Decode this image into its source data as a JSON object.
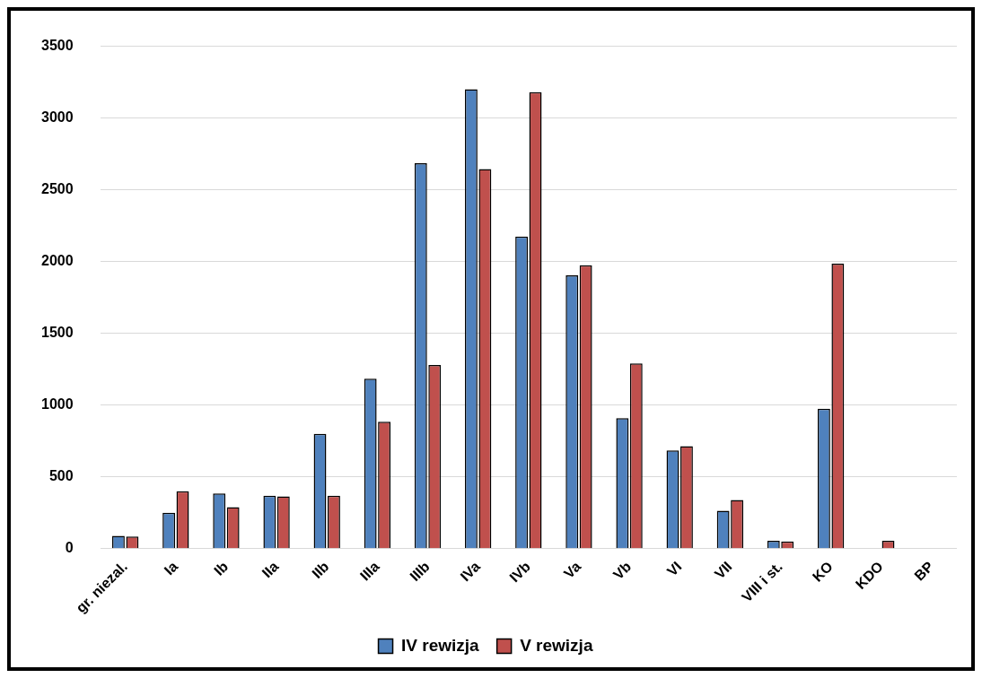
{
  "chart_data": {
    "type": "bar",
    "categories": [
      "gr. niezal.",
      "Ia",
      "Ib",
      "IIa",
      "IIb",
      "IIIa",
      "IIIb",
      "IVa",
      "IVb",
      "Va",
      "Vb",
      "VI",
      "VII",
      "VIII i st.",
      "KO",
      "KDO",
      "BP"
    ],
    "series": [
      {
        "name": "IV rewizja",
        "color": "#4f81bd",
        "values": [
          90,
          250,
          385,
          370,
          800,
          1185,
          2685,
          3200,
          2175,
          1905,
          910,
          685,
          265,
          55,
          975,
          null,
          0
        ]
      },
      {
        "name": "V rewizja",
        "color": "#c0504d",
        "values": [
          85,
          400,
          290,
          365,
          370,
          885,
          1280,
          2645,
          3180,
          1975,
          1290,
          715,
          340,
          50,
          1985,
          55,
          0
        ]
      }
    ],
    "ylim": [
      0,
      3500
    ],
    "yticks": [
      0,
      500,
      1000,
      1500,
      2000,
      2500,
      3000,
      3500
    ],
    "grid": "y",
    "legend": "bottom"
  }
}
